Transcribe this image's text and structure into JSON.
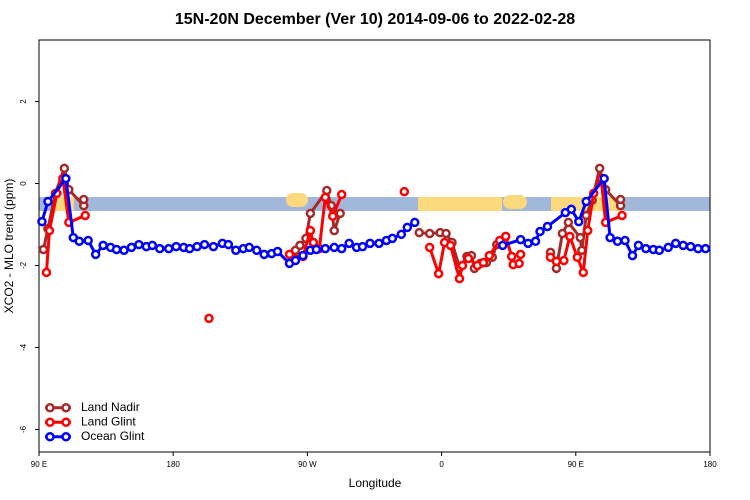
{
  "chart_data": {
    "type": "line",
    "title": "15N-20N December (Ver 10)   2014-09-06 to 2022-02-28",
    "x_label": "Longitude",
    "y_label": "XCO2 - MLO trend (ppm)",
    "xlim": [
      90,
      540
    ],
    "ylim": [
      -6.55,
      3.5
    ],
    "xticks": [
      {
        "value": 90,
        "label": "90 E"
      },
      {
        "value": 180,
        "label": "180"
      },
      {
        "value": 270,
        "label": "90 W"
      },
      {
        "value": 360,
        "label": "0"
      },
      {
        "value": 450,
        "label": "90 E"
      },
      {
        "value": 540,
        "label": "180"
      }
    ],
    "yticks": [
      2,
      0,
      -2,
      -4,
      -6
    ],
    "legend": "lower left",
    "series": [
      {
        "name": "Land Nadir",
        "color": "#a52a2a",
        "x": [
          93,
          96,
          101,
          107,
          110,
          120,
          120,
          null,
          262,
          265,
          269,
          272,
          283,
          286,
          288,
          292,
          null,
          345,
          352,
          359,
          363,
          367,
          372,
          377,
          380,
          382,
          386,
          390,
          394,
          397,
          null,
          433,
          437,
          441,
          445,
          453,
          454,
          457,
          461,
          466,
          470,
          480,
          480
        ],
        "values": [
          -1.61,
          -1.1,
          -0.24,
          0.37,
          -0.15,
          -0.54,
          -0.39,
          null,
          -1.63,
          -1.51,
          -1.34,
          -0.73,
          -0.17,
          -0.54,
          -1.15,
          -0.73,
          null,
          -1.2,
          -1.22,
          -1.2,
          -1.22,
          -1.44,
          -2.05,
          -1.78,
          -1.76,
          -2.07,
          -1.95,
          -1.93,
          -1.8,
          -1.49,
          null,
          -1.68,
          -2.07,
          -1.22,
          -0.95,
          -1.32,
          -1.63,
          -0.78,
          -0.41,
          0.37,
          -0.15,
          -0.54,
          -0.39
        ]
      },
      {
        "name": "Land Glint",
        "color": "#ff0000",
        "x": [
          95,
          97,
          102,
          106,
          110,
          121,
          null,
          204,
          null,
          258,
          262,
          267,
          272,
          274,
          278,
          282,
          287,
          293,
          null,
          335,
          null,
          352,
          358,
          362,
          366,
          372,
          374,
          378,
          384,
          388,
          392,
          399,
          403,
          407,
          408,
          412,
          413,
          null,
          433,
          437,
          442,
          446,
          451,
          455,
          458,
          462,
          467,
          470,
          481
        ],
        "values": [
          -2.17,
          -1.15,
          -0.24,
          0.12,
          -0.95,
          -0.78,
          null,
          -3.29,
          null,
          -1.73,
          -1.83,
          -1.78,
          -1.15,
          -1.44,
          -1.59,
          -0.34,
          -0.8,
          -0.27,
          null,
          -0.2,
          null,
          -1.56,
          -2.2,
          -1.44,
          -1.51,
          -2.32,
          -2.0,
          -1.83,
          -2.0,
          -1.93,
          -1.76,
          -1.39,
          -1.29,
          -1.78,
          -1.98,
          -1.95,
          -1.73,
          null,
          -1.8,
          -1.9,
          -1.88,
          -1.29,
          -1.8,
          -2.17,
          -1.15,
          -0.24,
          0.12,
          -0.95,
          -0.78
        ]
      },
      {
        "name": "Ocean Glint",
        "color": "#0000ff",
        "x": [
          92,
          96,
          108,
          113,
          117,
          123,
          128,
          133,
          138,
          142,
          147,
          152,
          157,
          162,
          166,
          171,
          177,
          182,
          187,
          191,
          196,
          201,
          207,
          213,
          217,
          222,
          227,
          231,
          236,
          241,
          246,
          250,
          258,
          262,
          267,
          272,
          276,
          282,
          288,
          293,
          298,
          303,
          307,
          312,
          318,
          323,
          327,
          333,
          337,
          342,
          null,
          401,
          413,
          418,
          423,
          426,
          431,
          443,
          447,
          452,
          457,
          469,
          473,
          478,
          483,
          488,
          492,
          497,
          502,
          506,
          512,
          517,
          522,
          527,
          532,
          537
        ],
        "values": [
          -0.93,
          -0.44,
          0.12,
          -1.32,
          -1.41,
          -1.39,
          -1.73,
          -1.51,
          -1.56,
          -1.61,
          -1.63,
          -1.56,
          -1.49,
          -1.54,
          -1.51,
          -1.59,
          -1.59,
          -1.54,
          -1.56,
          -1.59,
          -1.54,
          -1.49,
          -1.54,
          -1.46,
          -1.49,
          -1.63,
          -1.59,
          -1.56,
          -1.63,
          -1.73,
          -1.71,
          -1.66,
          -1.95,
          -1.88,
          -1.76,
          -1.63,
          -1.61,
          -1.59,
          -1.56,
          -1.59,
          -1.46,
          -1.56,
          -1.54,
          -1.46,
          -1.46,
          -1.39,
          -1.34,
          -1.24,
          -1.07,
          -0.95,
          null,
          -1.51,
          -1.37,
          -1.46,
          -1.41,
          -1.17,
          -1.05,
          -0.71,
          -0.63,
          -0.93,
          -0.44,
          0.12,
          -1.32,
          -1.41,
          -1.39,
          -1.76,
          -1.51,
          -1.59,
          -1.61,
          -1.63,
          -1.56,
          -1.46,
          -1.51,
          -1.54,
          -1.59,
          -1.59
        ]
      }
    ]
  }
}
